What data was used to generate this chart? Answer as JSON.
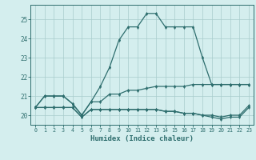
{
  "title": "",
  "xlabel": "Humidex (Indice chaleur)",
  "x": [
    0,
    1,
    2,
    3,
    4,
    5,
    6,
    7,
    8,
    9,
    10,
    11,
    12,
    13,
    14,
    15,
    16,
    17,
    18,
    19,
    20,
    21,
    22,
    23
  ],
  "line1": [
    20.4,
    21.0,
    21.0,
    21.0,
    20.6,
    20.0,
    20.7,
    21.5,
    22.5,
    23.9,
    24.6,
    24.6,
    25.3,
    25.3,
    24.6,
    24.6,
    24.6,
    24.6,
    23.0,
    21.6,
    21.6,
    21.6,
    21.6,
    21.6
  ],
  "line2": [
    20.4,
    21.0,
    21.0,
    21.0,
    20.6,
    20.0,
    20.7,
    20.7,
    21.1,
    21.1,
    21.3,
    21.3,
    21.4,
    21.5,
    21.5,
    21.5,
    21.5,
    21.6,
    21.6,
    21.6,
    21.6,
    21.6,
    21.6,
    21.6
  ],
  "line3": [
    20.4,
    20.4,
    20.4,
    20.4,
    20.4,
    19.9,
    20.3,
    20.3,
    20.3,
    20.3,
    20.3,
    20.3,
    20.3,
    20.3,
    20.2,
    20.2,
    20.1,
    20.1,
    20.0,
    20.0,
    19.9,
    20.0,
    20.0,
    20.5
  ],
  "line4": [
    20.4,
    20.4,
    20.4,
    20.4,
    20.4,
    19.9,
    20.3,
    20.3,
    20.3,
    20.3,
    20.3,
    20.3,
    20.3,
    20.3,
    20.2,
    20.2,
    20.1,
    20.1,
    20.0,
    19.9,
    19.8,
    19.9,
    19.9,
    20.4
  ],
  "line_color": "#2e6e6e",
  "bg_color": "#d4eeee",
  "grid_color": "#a8cccc",
  "ylim": [
    19.5,
    25.75
  ],
  "yticks": [
    20,
    21,
    22,
    23,
    24,
    25
  ],
  "xlim": [
    -0.5,
    23.5
  ]
}
